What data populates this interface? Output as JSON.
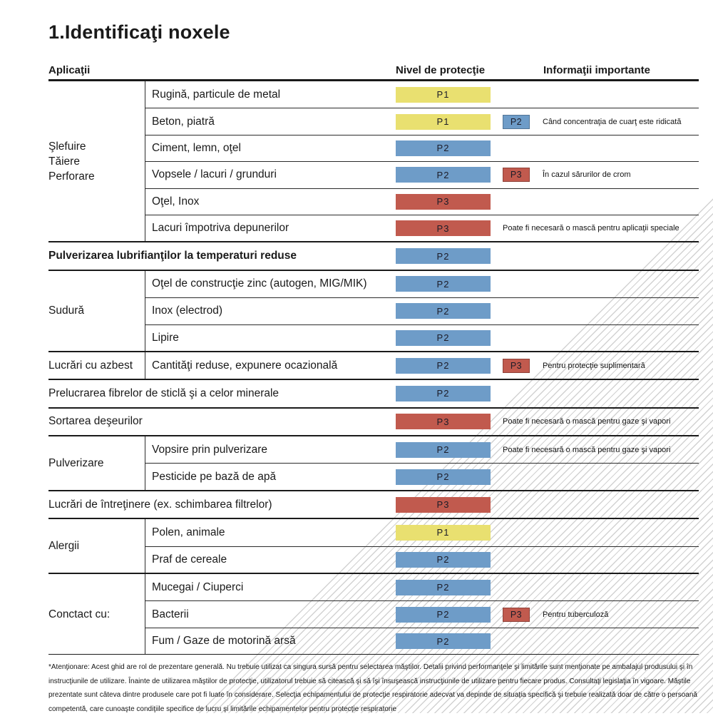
{
  "title": "1.Identificaţi noxele",
  "columns": {
    "applications": "Aplicaţii",
    "protection": "Nivel de protecţie",
    "info": "Informaţii importante"
  },
  "levels": {
    "P1": "#e9e070",
    "P2": "#6e9cc8",
    "P3": "#c15a4e"
  },
  "groups": [
    {
      "label_lines": [
        "Şlefuire",
        "Tăiere",
        "Perforare"
      ],
      "rows": [
        {
          "label": "Rugină, particule de metal",
          "level": "P1"
        },
        {
          "label": "Beton, piatră",
          "level": "P1",
          "badge": "P2",
          "info": "Când concentraţia de cuarţ este ridicată"
        },
        {
          "label": "Ciment, lemn, oţel",
          "level": "P2"
        },
        {
          "label": "Vopsele / lacuri / grunduri",
          "level": "P2",
          "badge": "P3",
          "info": "În cazul sărurilor de crom"
        },
        {
          "label": "Oţel, Inox",
          "level": "P3"
        },
        {
          "label": "Lacuri împotriva depunerilor",
          "level": "P3",
          "info": "Poate fi necesară o mască pentru aplicaţii speciale"
        }
      ]
    },
    {
      "rows": [
        {
          "label": "Pulverizarea lubrifianţilor la temperaturi reduse",
          "bold": true,
          "level": "P2"
        }
      ]
    },
    {
      "label_lines": [
        "Sudură"
      ],
      "rows": [
        {
          "label": "Oţel de construcţie zinc (autogen, MIG/MIK)",
          "level": "P2"
        },
        {
          "label": "Inox (electrod)",
          "level": "P2"
        },
        {
          "label": "Lipire",
          "level": "P2"
        }
      ]
    },
    {
      "label_lines": [
        "Lucrări cu azbest"
      ],
      "rows": [
        {
          "label": "Cantităţi reduse, expunere ocazională",
          "level": "P2",
          "badge": "P3",
          "info": "Pentru protecţie suplimentară"
        }
      ]
    },
    {
      "rows": [
        {
          "label": "Prelucrarea fibrelor de sticlă şi a celor minerale",
          "level": "P2"
        }
      ]
    },
    {
      "rows": [
        {
          "label": "Sortarea deşeurilor",
          "level": "P3",
          "info": "Poate fi necesară o mască pentru gaze şi vapori"
        }
      ]
    },
    {
      "label_lines": [
        "Pulverizare"
      ],
      "rows": [
        {
          "label": "Vopsire prin pulverizare",
          "level": "P2",
          "info": "Poate fi necesară o mască pentru gaze şi vapori"
        },
        {
          "label": "Pesticide pe bază de apă",
          "level": "P2"
        }
      ]
    },
    {
      "rows": [
        {
          "label": "Lucrări de întreţinere (ex. schimbarea filtrelor)",
          "level": "P3"
        }
      ]
    },
    {
      "label_lines": [
        "Alergii"
      ],
      "rows": [
        {
          "label": "Polen, animale",
          "level": "P1"
        },
        {
          "label": "Praf de cereale",
          "level": "P2"
        }
      ]
    },
    {
      "label_lines": [
        "Conctact cu:"
      ],
      "rows": [
        {
          "label": "Mucegai / Ciuperci",
          "level": "P2"
        },
        {
          "label": "Bacterii",
          "level": "P2",
          "badge": "P3",
          "info": "Pentru tuberculoză"
        },
        {
          "label": "Fum / Gaze de motorină arsă",
          "level": "P2"
        }
      ]
    }
  ],
  "footnote": "*Atenţionare: Acest ghid are rol de prezentare generală. Nu trebuie utilizat ca singura sursă pentru selectarea măştilor. Detalii privind performanţele şi limitările sunt menţionate pe ambalajul produsului şi în instrucţiunile de utilizare. Înainte de utilizarea măştilor de protecţie, utilizatorul trebuie să citească şi să îşi însuşească instrucţiunile de utilizare pentru fiecare produs. Consultaţi legislaţia în vigoare. Măştile prezentate sunt câteva dintre produsele care pot fi luate în considerare. Selecţia echipamentului de protecţie respiratorie adecvat va depinde de situaţia specifică şi trebuie realizată doar de către o persoană competentă, care cunoaşte condiţiile specifice de lucru şi limitările echipamentelor pentru protecţie respiratorie"
}
